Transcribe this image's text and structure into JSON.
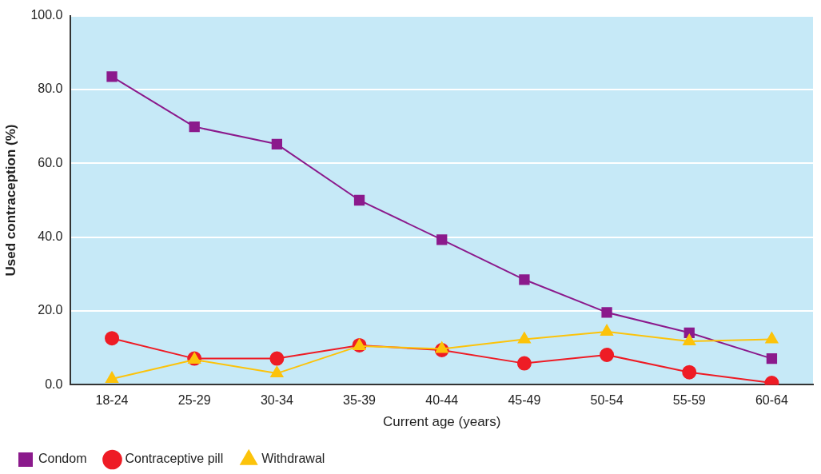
{
  "chart_data": {
    "type": "line",
    "xlabel": "Current age (years)",
    "ylabel": "Used contraception (%)",
    "categories": [
      "18-24",
      "25-29",
      "30-34",
      "35-39",
      "40-44",
      "45-49",
      "50-54",
      "55-59",
      "60-64"
    ],
    "series": [
      {
        "name": "Condom",
        "color": "#8b1a8c",
        "marker": "square",
        "values": [
          83.5,
          69.9,
          65.2,
          50.0,
          39.3,
          28.5,
          19.6,
          14.1,
          7.1
        ]
      },
      {
        "name": "Contraceptive pill",
        "color": "#ee1c25",
        "marker": "circle",
        "values": [
          12.6,
          7.1,
          7.1,
          10.7,
          9.4,
          5.8,
          8.1,
          3.4,
          0.5
        ]
      },
      {
        "name": "Withdrawal",
        "color": "#fcc30b",
        "marker": "triangle",
        "values": [
          1.6,
          6.8,
          3.1,
          10.5,
          9.7,
          12.3,
          14.4,
          11.8,
          12.3
        ]
      }
    ],
    "ylim": [
      0,
      100
    ],
    "yticks": [
      {
        "value": 0,
        "label": "0.0"
      },
      {
        "value": 20,
        "label": "20.0"
      },
      {
        "value": 40,
        "label": "40.0"
      },
      {
        "value": 60,
        "label": "60.0"
      },
      {
        "value": 80,
        "label": "80.0"
      },
      {
        "value": 100,
        "label": "100.0"
      }
    ],
    "grid": "y",
    "legend": "bottom left"
  }
}
